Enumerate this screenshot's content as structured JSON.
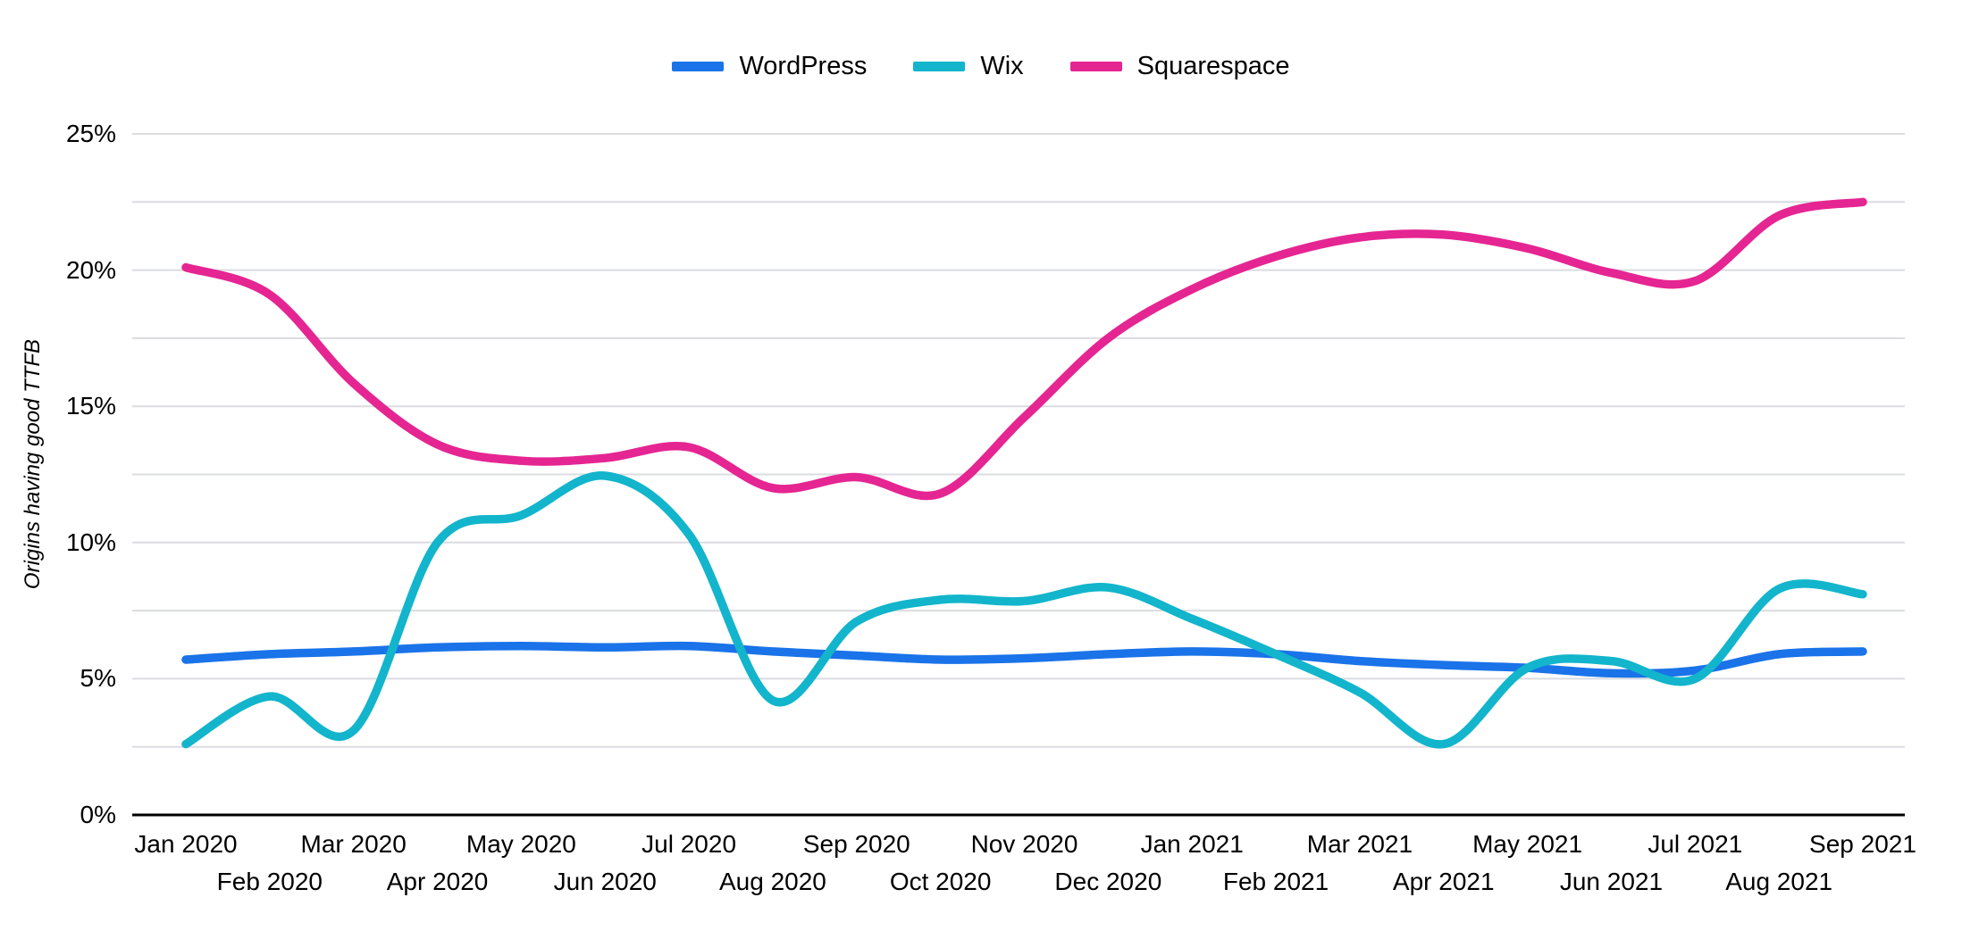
{
  "page": {
    "background": "#ffffff",
    "text_color": "#000000",
    "gridline_color": "#dadce0",
    "axis_color": "#000000"
  },
  "chart_data": {
    "type": "line",
    "title": "",
    "xlabel": "",
    "ylabel": "Origins having good TTFB",
    "ylim": [
      0,
      25
    ],
    "ytick_labels": [
      "0%",
      "5%",
      "10%",
      "15%",
      "20%",
      "25%"
    ],
    "ytick_values": [
      0,
      5,
      10,
      15,
      20,
      25
    ],
    "gridline_step_pct": 2.5,
    "grid": true,
    "legend_position": "top",
    "line_style": "smooth",
    "categories": [
      "Jan 2020",
      "Feb 2020",
      "Mar 2020",
      "Apr 2020",
      "May 2020",
      "Jun 2020",
      "Jul 2020",
      "Aug 2020",
      "Sep 2020",
      "Oct 2020",
      "Nov 2020",
      "Dec 2020",
      "Jan 2021",
      "Feb 2021",
      "Mar 2021",
      "Apr 2021",
      "May 2021",
      "Jun 2021",
      "Jul 2021",
      "Aug 2021",
      "Sep 2021"
    ],
    "series": [
      {
        "name": "WordPress",
        "color": "#1a73e8",
        "values": [
          5.7,
          5.9,
          6.0,
          6.15,
          6.2,
          6.15,
          6.2,
          6.0,
          5.85,
          5.7,
          5.75,
          5.9,
          6.0,
          5.9,
          5.65,
          5.5,
          5.4,
          5.2,
          5.3,
          5.9,
          6.0
        ]
      },
      {
        "name": "Wix",
        "color": "#12b5cb",
        "values": [
          2.6,
          4.35,
          3.1,
          10.0,
          11.0,
          12.45,
          10.3,
          4.2,
          7.1,
          7.9,
          7.85,
          8.35,
          7.2,
          5.9,
          4.5,
          2.6,
          5.4,
          5.65,
          5.0,
          8.3,
          8.1
        ]
      },
      {
        "name": "Squarespace",
        "color": "#e52592",
        "values": [
          20.1,
          19.1,
          15.85,
          13.6,
          13.0,
          13.1,
          13.5,
          12.0,
          12.4,
          11.8,
          14.6,
          17.5,
          19.3,
          20.5,
          21.2,
          21.3,
          20.8,
          19.9,
          19.6,
          22.0,
          22.5
        ]
      }
    ]
  }
}
